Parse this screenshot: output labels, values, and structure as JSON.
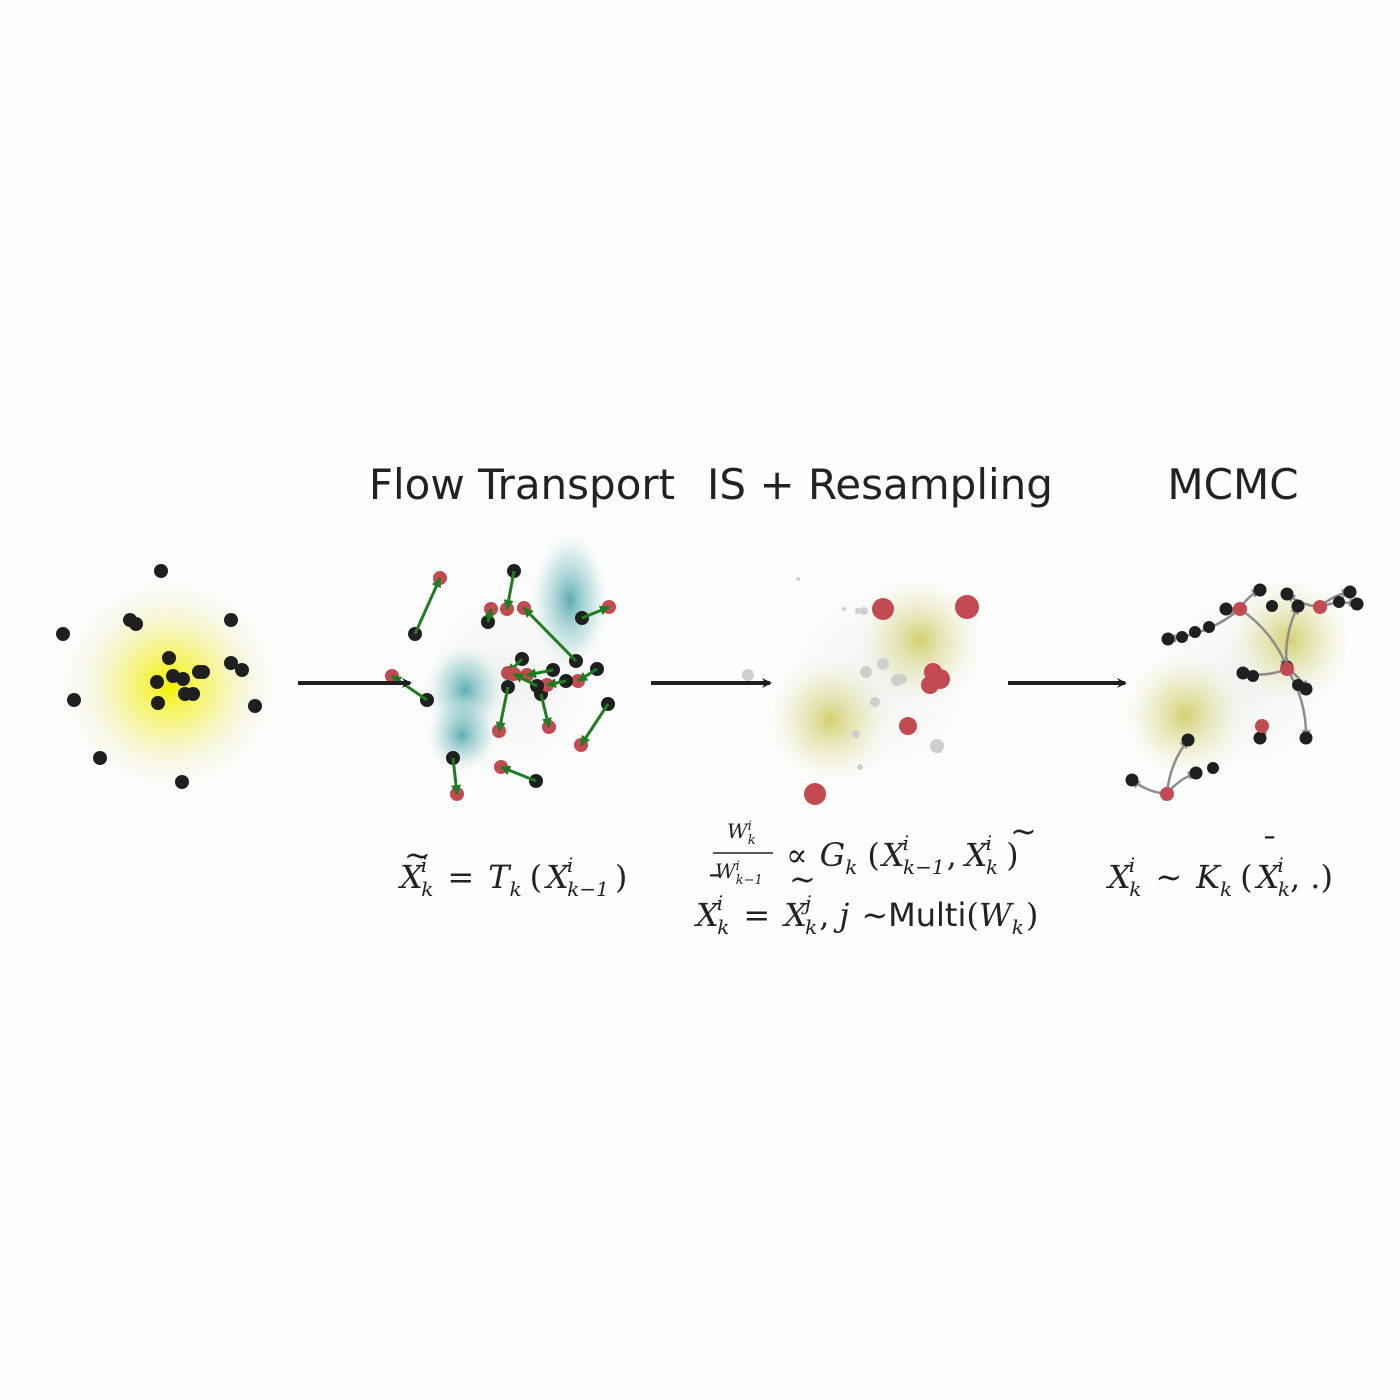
{
  "titles": {
    "flow": "Flow Transport",
    "is": "IS + Resampling",
    "mcmc": "MCMC"
  },
  "equations": {
    "flow": {
      "X": "X",
      "eq": "=",
      "T": "T",
      "k": "k",
      "i": "i",
      "km1": "k−1"
    },
    "is_line1": {
      "W": "W",
      "prop": "∝",
      "G": "G",
      "k": "k",
      "i": "i",
      "km1": "k−1",
      "X": "X",
      "comma": ","
    },
    "is_line2": {
      "X": "X",
      "eq": "=",
      "j": "j",
      "sim": "∼",
      "multi": "Multi",
      "W": "W",
      "k": "k",
      "i": "i"
    },
    "mcmc": {
      "X": "X",
      "sim": "∼",
      "K": "K",
      "k": "k",
      "i": "i",
      "tail": ", .)"
    }
  },
  "colors": {
    "particle_black": "#1f1f1f",
    "particle_red": "#c44a52",
    "flow_arrow": "#1e7d1e",
    "mcmc_arrow": "#8c8c8c",
    "resampled_gray": "#cfcfcf",
    "yellow_density": "#f5f200",
    "teal_density": "#3fa0a6",
    "olive_density": "#c9c64a",
    "process_arrow": "#1f1f1f"
  },
  "icons": [
    "right-arrow-icon"
  ]
}
